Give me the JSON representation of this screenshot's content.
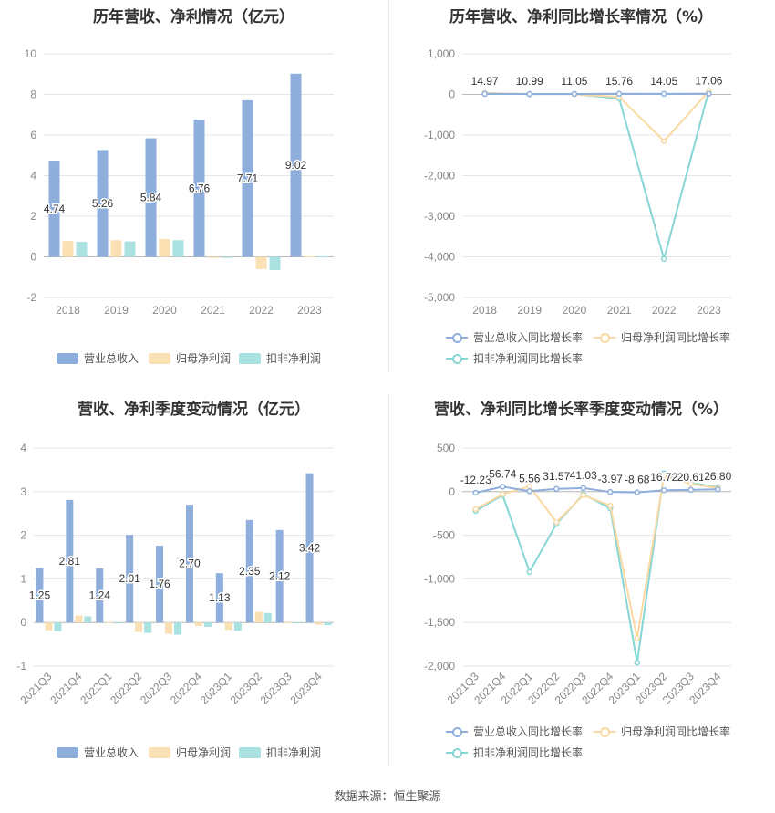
{
  "source": "数据来源：恒生聚源",
  "colors": {
    "revenue": "#8eaedc",
    "net_profit": "#fbe0b3",
    "deducted_profit": "#a9e2e0",
    "rev_line": "#8eaedc",
    "np_line": "#fbd9a3",
    "dp_line": "#86d6d6"
  },
  "chart_data": [
    {
      "type": "bar",
      "title": "历年营收、净利情况（亿元）",
      "categories": [
        "2018",
        "2019",
        "2020",
        "2021",
        "2022",
        "2023"
      ],
      "ylim": [
        -2,
        10
      ],
      "yticks": [
        "10",
        "8",
        "6",
        "4",
        "2",
        "0",
        "-2"
      ],
      "ytick_values": [
        10,
        8,
        6,
        4,
        2,
        0,
        -2
      ],
      "series": [
        {
          "name": "营业总收入",
          "values": [
            4.74,
            5.26,
            5.84,
            6.76,
            7.71,
            9.02
          ],
          "labels": [
            "4.74",
            "5.26",
            "5.84",
            "6.76",
            "7.71",
            "9.02"
          ]
        },
        {
          "name": "归母净利润",
          "values": [
            0.78,
            0.82,
            0.88,
            -0.05,
            -0.6,
            0.02
          ]
        },
        {
          "name": "扣非净利润",
          "values": [
            0.74,
            0.76,
            0.82,
            -0.05,
            -0.65,
            0.02
          ]
        }
      ],
      "grid": true,
      "legend_position": "bottom"
    },
    {
      "type": "line",
      "title": "历年营收、净利同比增长率情况（%）",
      "categories": [
        "2018",
        "2019",
        "2020",
        "2021",
        "2022",
        "2023"
      ],
      "ylim": [
        -5000,
        1000
      ],
      "yticks": [
        "1,000",
        "0",
        "-1,000",
        "-2,000",
        "-3,000",
        "-4,000",
        "-5,000"
      ],
      "ytick_values": [
        1000,
        0,
        -1000,
        -2000,
        -3000,
        -4000,
        -5000
      ],
      "series": [
        {
          "name": "营业总收入同比增长率",
          "values": [
            14.97,
            10.99,
            11.05,
            15.76,
            14.05,
            17.06
          ],
          "labels": [
            "14.97",
            "10.99",
            "11.05",
            "15.76",
            "14.05",
            "17.06"
          ]
        },
        {
          "name": "归母净利润同比增长率",
          "values": [
            30,
            10,
            5,
            -60,
            -1150,
            80
          ]
        },
        {
          "name": "扣非净利润同比增长率",
          "values": [
            35,
            5,
            10,
            -100,
            -4050,
            90
          ]
        }
      ],
      "grid": true,
      "legend_position": "bottom"
    },
    {
      "type": "bar",
      "title": "营收、净利季度变动情况（亿元）",
      "categories": [
        "2021Q3",
        "2021Q4",
        "2022Q1",
        "2022Q2",
        "2022Q3",
        "2022Q4",
        "2023Q1",
        "2023Q2",
        "2023Q3",
        "2023Q4"
      ],
      "ylim": [
        -1,
        4
      ],
      "yticks": [
        "4",
        "3",
        "2",
        "1",
        "0",
        "-1"
      ],
      "ytick_values": [
        4,
        3,
        2,
        1,
        0,
        -1
      ],
      "series": [
        {
          "name": "营业总收入",
          "values": [
            1.25,
            2.81,
            1.24,
            2.01,
            1.76,
            2.7,
            1.13,
            2.35,
            2.12,
            3.42
          ],
          "labels": [
            "1.25",
            "2.81",
            "1.24",
            "2.01",
            "1.76",
            "2.70",
            "1.13",
            "2.35",
            "2.12",
            "3.42"
          ]
        },
        {
          "name": "归母净利润",
          "values": [
            -0.18,
            0.16,
            0.01,
            -0.22,
            -0.26,
            -0.08,
            -0.17,
            0.24,
            0.01,
            -0.05
          ]
        },
        {
          "name": "扣非净利润",
          "values": [
            -0.2,
            0.14,
            0.0,
            -0.24,
            -0.28,
            -0.1,
            -0.19,
            0.22,
            0.0,
            -0.06
          ]
        }
      ],
      "grid": true,
      "legend_position": "bottom"
    },
    {
      "type": "line",
      "title": "营收、净利同比增长率季度变动情况（%）",
      "categories": [
        "2021Q3",
        "2021Q4",
        "2022Q1",
        "2022Q2",
        "2022Q3",
        "2022Q4",
        "2023Q1",
        "2023Q2",
        "2023Q3",
        "2023Q4"
      ],
      "ylim": [
        -2000,
        500
      ],
      "yticks": [
        "500",
        "0",
        "-500",
        "-1,000",
        "-1,500",
        "-2,000"
      ],
      "ytick_values": [
        500,
        0,
        -500,
        -1000,
        -1500,
        -2000
      ],
      "series": [
        {
          "name": "营业总收入同比增长率",
          "values": [
            -12.23,
            56.74,
            5.56,
            31.57,
            41.03,
            -3.97,
            -8.68,
            16.72,
            20.61,
            26.8
          ],
          "labels": [
            "-12.23",
            "56.74",
            "5.56",
            "31.57",
            "41.03",
            "-3.97",
            "-8.68",
            "16.72",
            "20.61",
            "26.80"
          ]
        },
        {
          "name": "归母净利润同比增长率",
          "values": [
            -200,
            -30,
            60,
            -350,
            -40,
            -160,
            -1680,
            180,
            90,
            40
          ]
        },
        {
          "name": "扣非净利润同比增长率",
          "values": [
            -220,
            -40,
            -920,
            -370,
            -30,
            -190,
            -1960,
            210,
            100,
            50
          ]
        }
      ],
      "grid": true,
      "legend_position": "bottom"
    }
  ]
}
